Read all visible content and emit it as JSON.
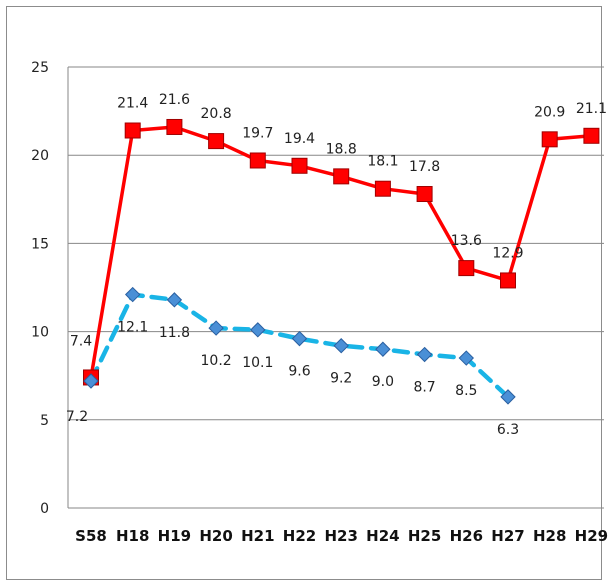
{
  "chart_data": {
    "type": "line",
    "categories": [
      "S58",
      "H18",
      "H19",
      "H20",
      "H21",
      "H22",
      "H23",
      "H24",
      "H25",
      "H26",
      "H27",
      "H28",
      "H29"
    ],
    "ylim": [
      0,
      25
    ],
    "yticks": [
      0,
      5,
      10,
      15,
      20,
      25
    ],
    "grid": true,
    "series": [
      {
        "color": "#ff0000",
        "marker": "square",
        "line_style": "solid",
        "values": [
          7.4,
          21.4,
          21.6,
          20.8,
          19.7,
          19.4,
          18.8,
          18.1,
          17.8,
          13.6,
          12.9,
          20.9,
          21.1
        ],
        "labels": [
          "7.4",
          "21.4",
          "21.6",
          "20.8",
          "19.7",
          "19.4",
          "18.8",
          "18.1",
          "17.8",
          "13.6",
          "12.9",
          "20.9",
          "21.1"
        ]
      },
      {
        "color": "#19b4e6",
        "marker": "diamond",
        "line_style": "dashed",
        "values": [
          7.2,
          12.1,
          11.8,
          10.2,
          10.1,
          9.6,
          9.2,
          9.0,
          8.7,
          8.5,
          6.3,
          null,
          null
        ],
        "labels": [
          "7.2",
          "12.1",
          "11.8",
          "10.2",
          "10.1",
          "9.6",
          "9.2",
          "9.0",
          "8.7",
          "8.5",
          "6.3",
          "",
          ""
        ]
      }
    ]
  }
}
